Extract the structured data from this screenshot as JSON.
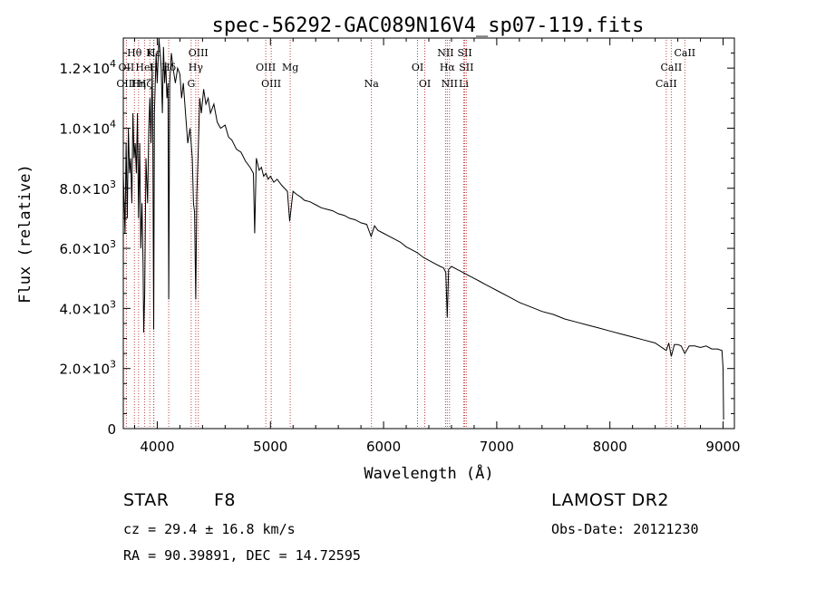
{
  "chart_data": {
    "type": "line",
    "title": "spec-56292-GAC089N16V4_sp07-119.fits",
    "xlabel": "Wavelength (Å)",
    "ylabel": "Flux (relative)",
    "xlim": [
      3700,
      9100
    ],
    "ylim": [
      0,
      13000
    ],
    "x_ticks": [
      4000,
      5000,
      6000,
      7000,
      8000,
      9000
    ],
    "x_tick_labels": [
      "4000",
      "5000",
      "6000",
      "7000",
      "8000",
      "9000"
    ],
    "y_ticks": [
      0,
      2000,
      4000,
      6000,
      8000,
      10000,
      12000
    ],
    "y_tick_labels": [
      {
        "mantissa": "0",
        "exp": ""
      },
      {
        "mantissa": "2.0×10",
        "exp": "3"
      },
      {
        "mantissa": "4.0×10",
        "exp": "3"
      },
      {
        "mantissa": "6.0×10",
        "exp": "3"
      },
      {
        "mantissa": "8.0×10",
        "exp": "3"
      },
      {
        "mantissa": "1.0×10",
        "exp": "4"
      },
      {
        "mantissa": "1.2×10",
        "exp": "4"
      }
    ],
    "series": [
      {
        "x": [
          3700,
          3715,
          3725,
          3735,
          3745,
          3755,
          3765,
          3775,
          3785,
          3795,
          3805,
          3815,
          3825,
          3835,
          3845,
          3855,
          3865,
          3875,
          3880,
          3889,
          3900,
          3915,
          3925,
          3935,
          3945,
          3955,
          3960,
          3968,
          3975,
          3990,
          4000,
          4015,
          4025,
          4035,
          4045,
          4055,
          4065,
          4075,
          4085,
          4095,
          4101,
          4110,
          4125,
          4140,
          4160,
          4180,
          4200,
          4215,
          4230,
          4250,
          4270,
          4290,
          4310,
          4320,
          4330,
          4340,
          4350,
          4360,
          4375,
          4390,
          4410,
          4430,
          4450,
          4470,
          4500,
          4530,
          4560,
          4600,
          4630,
          4660,
          4700,
          4740,
          4780,
          4820,
          4850,
          4861,
          4875,
          4900,
          4920,
          4940,
          4960,
          4980,
          5000,
          5030,
          5060,
          5100,
          5150,
          5170,
          5200,
          5230,
          5270,
          5300,
          5350,
          5400,
          5450,
          5500,
          5550,
          5600,
          5650,
          5700,
          5750,
          5800,
          5850,
          5890,
          5920,
          5950,
          6000,
          6050,
          6100,
          6150,
          6200,
          6250,
          6300,
          6350,
          6400,
          6450,
          6500,
          6530,
          6550,
          6563,
          6575,
          6600,
          6650,
          6700,
          6750,
          6800,
          6850,
          6900,
          6950,
          7000,
          7100,
          7200,
          7300,
          7400,
          7500,
          7600,
          7700,
          7800,
          7900,
          8000,
          8100,
          8200,
          8300,
          8400,
          8498,
          8520,
          8542,
          8570,
          8600,
          8630,
          8662,
          8700,
          8750,
          8800,
          8850,
          8900,
          8950,
          8990,
          9000,
          9005
        ],
        "y": [
          8500,
          6500,
          9500,
          7000,
          10000,
          8500,
          9000,
          7500,
          10500,
          9000,
          9500,
          8500,
          10500,
          7000,
          9500,
          6000,
          7500,
          5500,
          3200,
          4500,
          9000,
          7500,
          10000,
          11000,
          9500,
          12000,
          10000,
          3300,
          10500,
          12500,
          11500,
          13000,
          12500,
          12000,
          10500,
          12700,
          11500,
          12200,
          11000,
          11500,
          4300,
          11500,
          12500,
          12000,
          11500,
          12000,
          11800,
          11000,
          11500,
          10500,
          9500,
          10000,
          9000,
          7500,
          7200,
          4300,
          7800,
          9000,
          11000,
          10500,
          11300,
          10800,
          11000,
          10500,
          10800,
          10200,
          10000,
          10100,
          9700,
          9600,
          9300,
          9200,
          8900,
          8700,
          8500,
          6500,
          9000,
          8600,
          8700,
          8400,
          8500,
          8300,
          8400,
          8200,
          8300,
          8100,
          7900,
          6900,
          7900,
          7800,
          7700,
          7600,
          7550,
          7450,
          7350,
          7300,
          7250,
          7150,
          7100,
          7000,
          6950,
          6850,
          6800,
          6400,
          6750,
          6600,
          6500,
          6400,
          6300,
          6200,
          6050,
          5950,
          5850,
          5700,
          5600,
          5500,
          5400,
          5350,
          5200,
          3700,
          5300,
          5400,
          5300,
          5200,
          5100,
          5000,
          4900,
          4800,
          4700,
          4600,
          4400,
          4200,
          4050,
          3900,
          3800,
          3650,
          3550,
          3450,
          3350,
          3250,
          3150,
          3050,
          2950,
          2850,
          2600,
          2850,
          2400,
          2800,
          2800,
          2750,
          2500,
          2750,
          2750,
          2700,
          2750,
          2650,
          2650,
          2600,
          2000,
          300
        ]
      }
    ],
    "lines_top": [
      {
        "label": "Hθ",
        "x": 3798
      },
      {
        "label": "K",
        "x": 3934
      },
      {
        "label": "Hε",
        "x": 3970
      },
      {
        "label": "OIII",
        "x": 4363
      },
      {
        "label": "NII",
        "x": 6548
      },
      {
        "label": "SII",
        "x": 6717
      },
      {
        "label": "CaII",
        "x": 8662
      }
    ],
    "lines_mid": [
      {
        "label": "OII",
        "x": 3727
      },
      {
        "label": "HeI",
        "x": 3889
      },
      {
        "label": "H",
        "x": 3968
      },
      {
        "label": "Hδ",
        "x": 4101
      },
      {
        "label": "Hγ",
        "x": 4340
      },
      {
        "label": "OIII",
        "x": 4959
      },
      {
        "label": "Mg",
        "x": 5175
      },
      {
        "label": "OI",
        "x": 6300
      },
      {
        "label": "Hα",
        "x": 6563
      },
      {
        "label": "SII",
        "x": 6731
      },
      {
        "label": "CaII",
        "x": 8542
      }
    ],
    "lines_bot": [
      {
        "label": "OIII",
        "x": 3727
      },
      {
        "label": "Hη",
        "x": 3835
      },
      {
        "label": "Hζ",
        "x": 3889
      },
      {
        "label": "G",
        "x": 4300
      },
      {
        "label": "OIII",
        "x": 5007
      },
      {
        "label": "Na",
        "x": 5893
      },
      {
        "label": "OI",
        "x": 6364
      },
      {
        "label": "NII",
        "x": 6583
      },
      {
        "label": "Li",
        "x": 6708
      },
      {
        "label": "CaII",
        "x": 8498
      }
    ]
  },
  "info": {
    "object_class": "STAR",
    "subclass": "F8",
    "survey": "LAMOST DR2",
    "cz": "cz = 29.4 ± 16.8 km/s",
    "obs_date": "Obs-Date: 20121230",
    "coords": "RA =  90.39891, DEC =  14.72595"
  }
}
